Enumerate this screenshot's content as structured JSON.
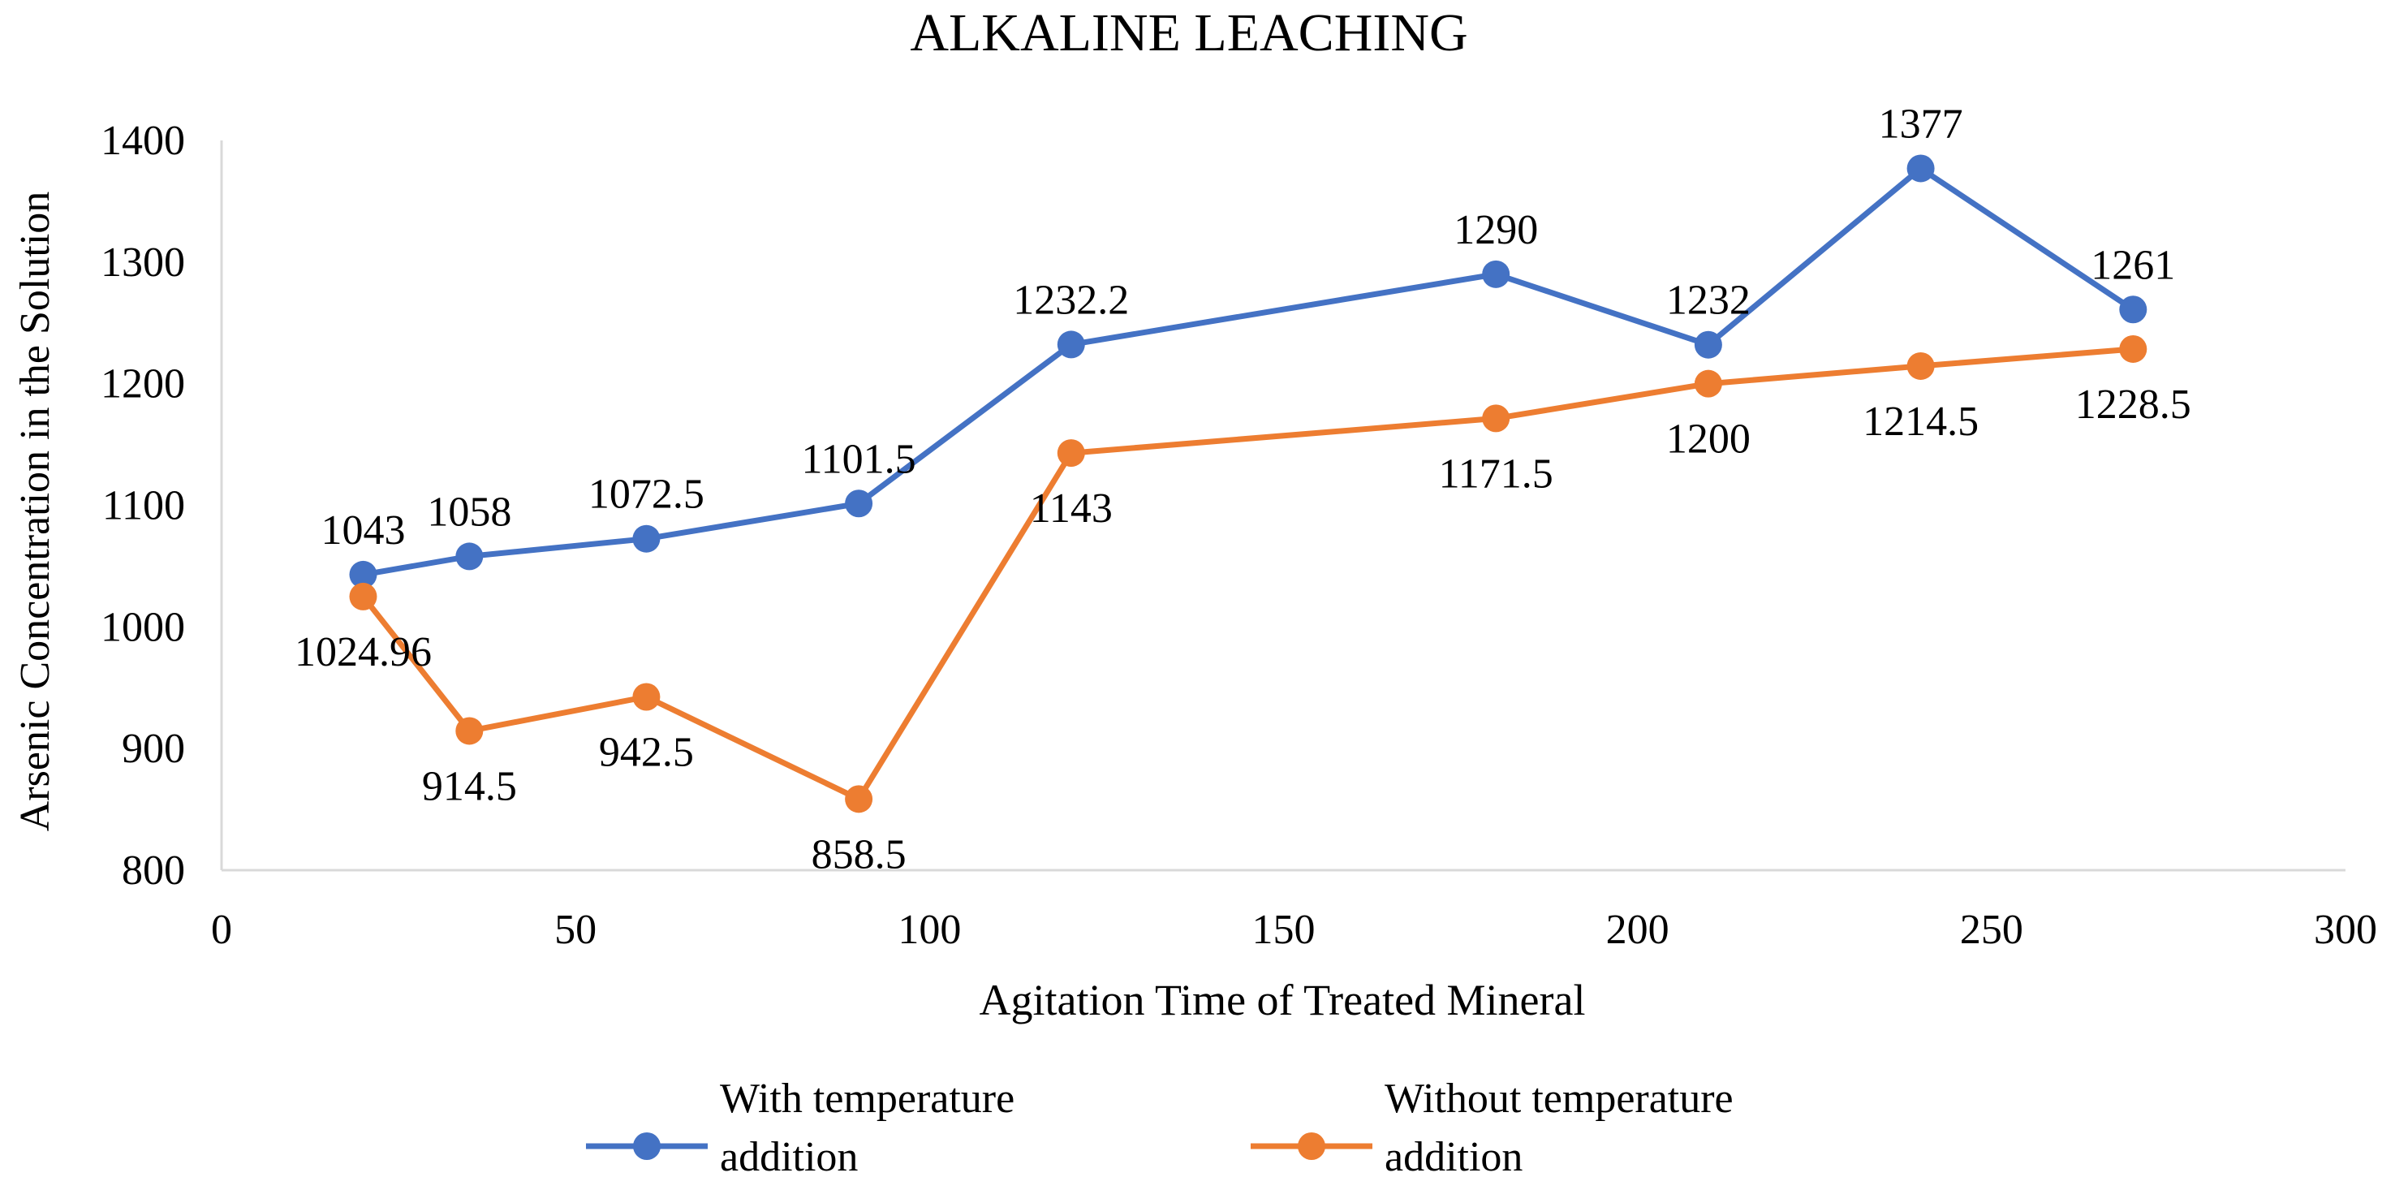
{
  "chart_data": {
    "type": "line",
    "title": "ALKALINE LEACHING",
    "xlabel": "Agitation Time of Treated Mineral",
    "ylabel": "Arsenic Concentration in the Solution",
    "xlim": [
      0,
      300
    ],
    "ylim": [
      800,
      1400
    ],
    "x_ticks": [
      0,
      50,
      100,
      150,
      200,
      250,
      300
    ],
    "y_ticks": [
      800,
      900,
      1000,
      1100,
      1200,
      1300,
      1400
    ],
    "x_tick_labels": [
      "0",
      "50",
      "100",
      "150",
      "200",
      "250",
      "300"
    ],
    "y_tick_labels": [
      "800",
      "900",
      "1000",
      "1100",
      "1200",
      "1300",
      "1400"
    ],
    "grid": false,
    "legend_position": "bottom",
    "series": [
      {
        "name": "With temperature addition",
        "name_lines": [
          "With temperature",
          "addition"
        ],
        "color": "#4472C4",
        "label_position": "above",
        "x": [
          20,
          35,
          60,
          90,
          120,
          180,
          210,
          240,
          270
        ],
        "y": [
          1043,
          1058,
          1072.5,
          1101.5,
          1232.2,
          1290,
          1232,
          1377,
          1261
        ],
        "labels": [
          "1043",
          "1058",
          "1072.5",
          "1101.5",
          "1232.2",
          "1290",
          "1232",
          "1377",
          "1261"
        ]
      },
      {
        "name": "Without temperature addition",
        "name_lines": [
          "Without temperature",
          "addition"
        ],
        "color": "#ED7D31",
        "label_position": "below",
        "x": [
          20,
          35,
          60,
          90,
          120,
          180,
          210,
          240,
          270
        ],
        "y": [
          1024.96,
          914.5,
          942.5,
          858.5,
          1143,
          1171.5,
          1200,
          1214.5,
          1228.5
        ],
        "labels": [
          "1024.96",
          "914.5",
          "942.5",
          "858.5",
          "1143",
          "1171.5",
          "1200",
          "1214.5",
          "1228.5"
        ]
      }
    ]
  }
}
